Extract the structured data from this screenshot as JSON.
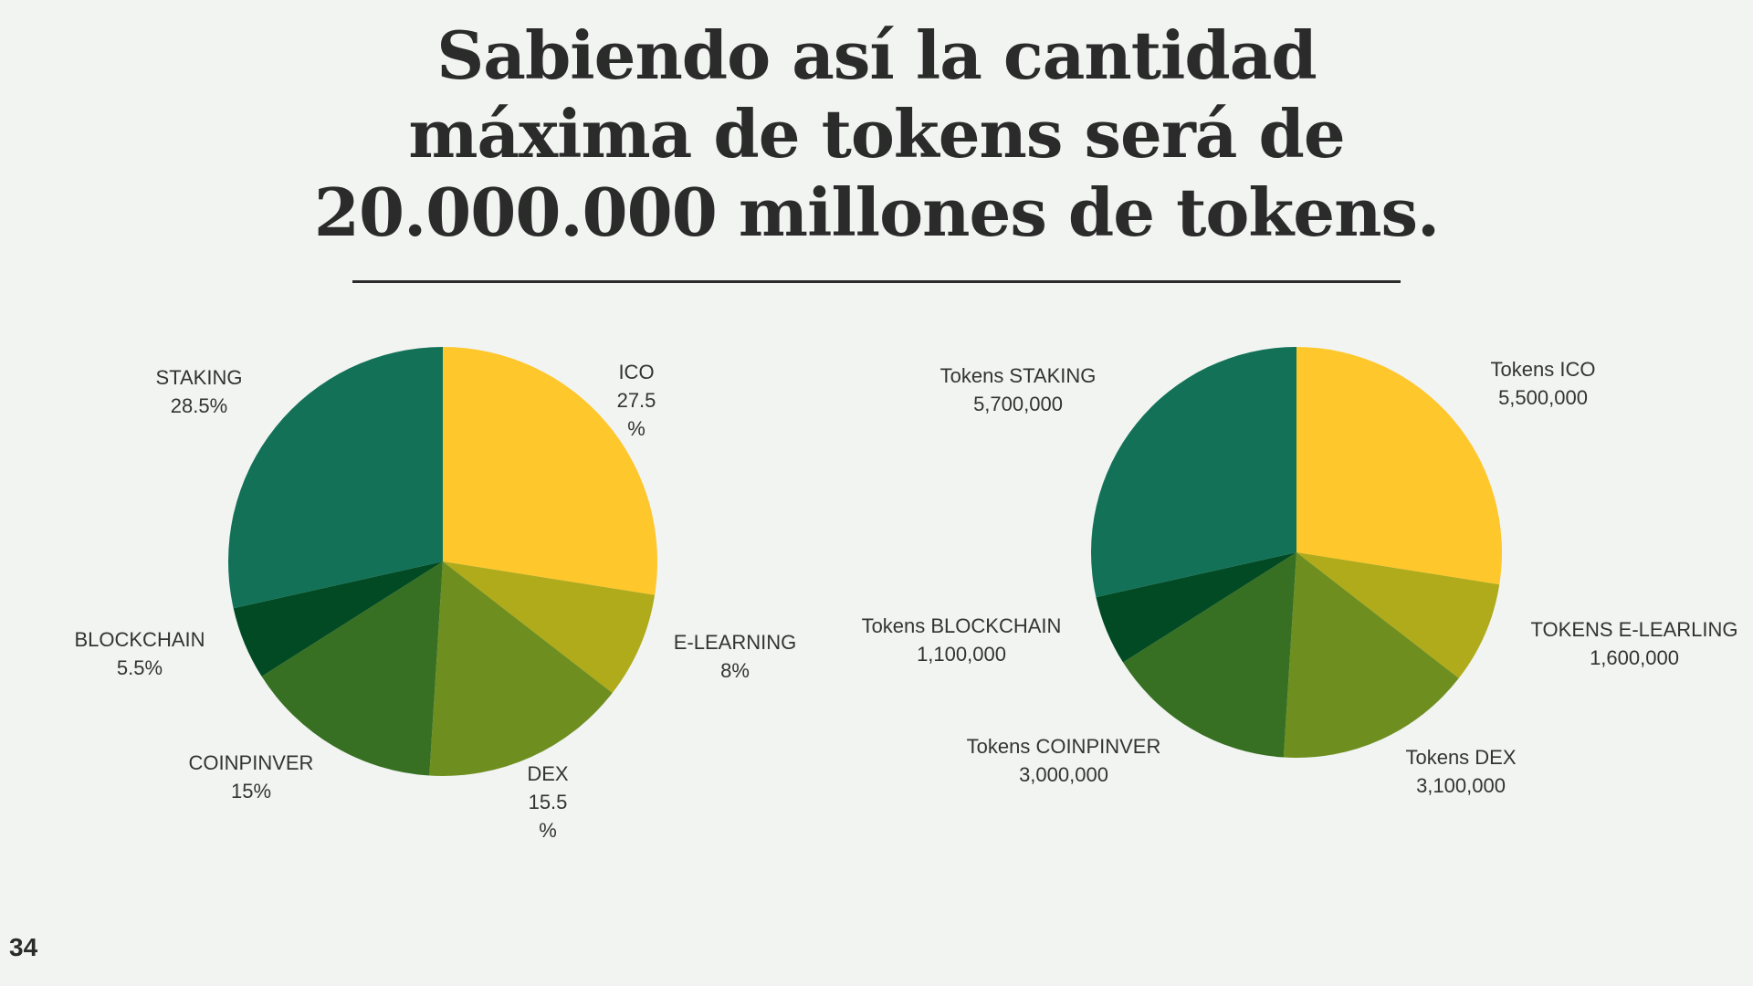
{
  "slide": {
    "title_lines": [
      "Sabiendo así la cantidad",
      "máxima de tokens será de",
      "20.000.000 millones de tokens."
    ],
    "page_number": "34"
  },
  "colors": {
    "ico": "#fec72c",
    "elearning": "#b0ab1a",
    "dex": "#6e8f20",
    "coinpinver": "#377023",
    "blockchain": "#014a23",
    "staking": "#127157"
  },
  "chart_data": [
    {
      "type": "pie",
      "slices": [
        {
          "name": "ICO",
          "value": 27.5,
          "label_lines": [
            "ICO",
            "27.5",
            "%"
          ],
          "color": "#fec72c"
        },
        {
          "name": "E-LEARNING",
          "value": 8,
          "label_lines": [
            "E-LEARNING",
            "8%"
          ],
          "color": "#b0ab1a"
        },
        {
          "name": "DEX",
          "value": 15.5,
          "label_lines": [
            "DEX",
            "15.5",
            "%"
          ],
          "color": "#6e8f20"
        },
        {
          "name": "COINPINVER",
          "value": 15,
          "label_lines": [
            "COINPINVER",
            "15%"
          ],
          "color": "#377023"
        },
        {
          "name": "BLOCKCHAIN",
          "value": 5.5,
          "label_lines": [
            "BLOCKCHAIN",
            "5.5%"
          ],
          "color": "#014a23"
        },
        {
          "name": "STAKING",
          "value": 28.5,
          "label_lines": [
            "STAKING",
            "28.5%"
          ],
          "color": "#127157"
        }
      ]
    },
    {
      "type": "pie",
      "slices": [
        {
          "name": "Tokens ICO",
          "value": 5500000,
          "label_lines": [
            "Tokens ICO",
            "5,500,000"
          ],
          "color": "#fec72c"
        },
        {
          "name": "TOKENS E-LEARLING",
          "value": 1600000,
          "label_lines": [
            "TOKENS E-LEARLING",
            "1,600,000"
          ],
          "color": "#b0ab1a"
        },
        {
          "name": "Tokens DEX",
          "value": 3100000,
          "label_lines": [
            "Tokens DEX",
            "3,100,000"
          ],
          "color": "#6e8f20"
        },
        {
          "name": "Tokens COINPINVER",
          "value": 3000000,
          "label_lines": [
            "Tokens COINPINVER",
            "3,000,000"
          ],
          "color": "#377023"
        },
        {
          "name": "Tokens BLOCKCHAIN",
          "value": 1100000,
          "label_lines": [
            "Tokens BLOCKCHAIN",
            "1,100,000"
          ],
          "color": "#014a23"
        },
        {
          "name": "Tokens STAKING",
          "value": 5700000,
          "label_lines": [
            "Tokens STAKING",
            "5,700,000"
          ],
          "color": "#127157"
        }
      ]
    }
  ]
}
